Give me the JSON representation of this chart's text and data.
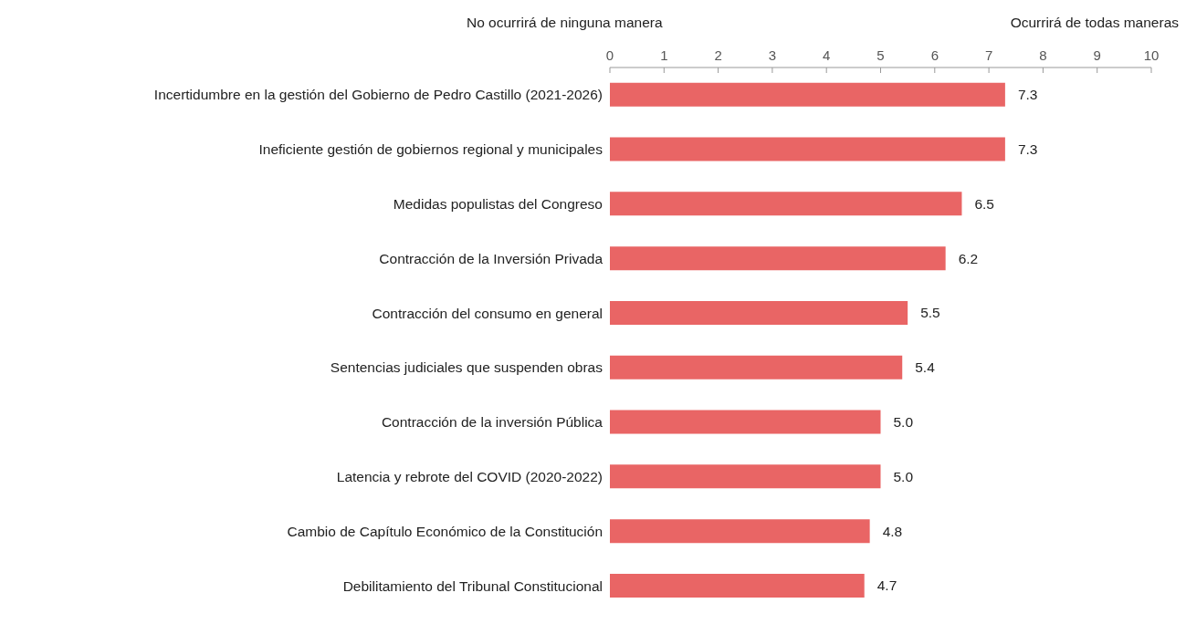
{
  "chart_data": {
    "type": "bar",
    "orientation": "horizontal",
    "categories": [
      "Incertidumbre en la gestión del Gobierno de Pedro Castillo (2021-2026)",
      "Ineficiente gestión de gobiernos regional y municipales",
      "Medidas populistas del Congreso",
      "Contracción de la Inversión Privada",
      "Contracción del consumo en general",
      "Sentencias judiciales  que suspenden obras",
      "Contracción de la inversión Pública",
      "Latencia y rebrote del COVID (2020-2022)",
      "Cambio de Capítulo Económico de la Constitución",
      "Debilitamiento del Tribunal Constitucional"
    ],
    "values": [
      7.3,
      7.3,
      6.5,
      6.2,
      5.5,
      5.4,
      5.0,
      5.0,
      4.8,
      4.7
    ],
    "value_labels": [
      "7.3",
      "7.3",
      "6.5",
      "6.2",
      "5.5",
      "5.4",
      "5.0",
      "5.0",
      "4.8",
      "4.7"
    ],
    "color": "#e96565",
    "xlim": [
      0,
      10
    ],
    "xticks": [
      0,
      1,
      2,
      3,
      4,
      5,
      6,
      7,
      8,
      9,
      10
    ],
    "annotations": [
      "No ocurrirá de ninguna manera",
      "Ocurrirá de todas maneras"
    ],
    "grid": false
  }
}
